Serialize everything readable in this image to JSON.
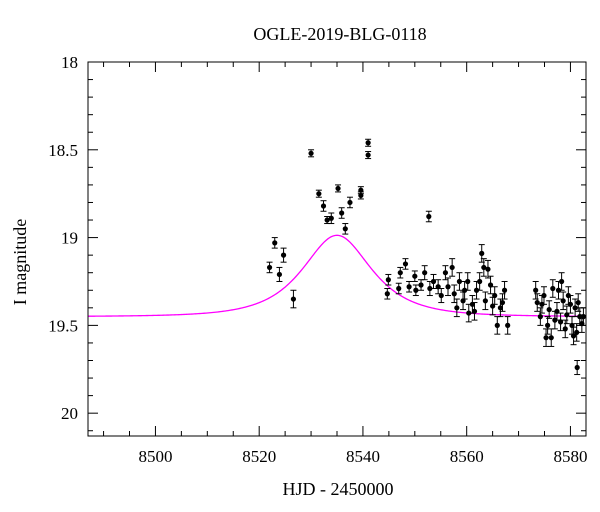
{
  "chart_data": {
    "type": "scatter",
    "title": "OGLE-2019-BLG-0118",
    "xlabel": "HJD - 2450000",
    "ylabel": "I magnitude",
    "xlim": [
      8487,
      8583
    ],
    "ylim": [
      20.13,
      18.0
    ],
    "y_inverted": true,
    "grid": false,
    "x_ticks": [
      8500,
      8520,
      8540,
      8560,
      8580
    ],
    "x_tick_labels": [
      "8500",
      "8520",
      "8540",
      "8560",
      "8580"
    ],
    "y_ticks": [
      18,
      18.5,
      19,
      19.5,
      20
    ],
    "y_tick_labels": [
      "18",
      "18.5",
      "19",
      "19.5",
      "20"
    ],
    "colors": {
      "model": "#ff00ff",
      "points": "#000000"
    },
    "series": [
      {
        "type": "scatter_errorbar",
        "points": [
          [
            8522,
            19.17,
            0.03
          ],
          [
            8523,
            19.03,
            0.03
          ],
          [
            8523.9,
            19.21,
            0.04
          ],
          [
            8524.7,
            19.1,
            0.04
          ],
          [
            8526.6,
            19.35,
            0.05
          ],
          [
            8530,
            18.52,
            0.02
          ],
          [
            8531.5,
            18.75,
            0.02
          ],
          [
            8532.4,
            18.82,
            0.03
          ],
          [
            8533.1,
            18.9,
            0.02
          ],
          [
            8533.9,
            18.89,
            0.03
          ],
          [
            8535.2,
            18.72,
            0.02
          ],
          [
            8535.9,
            18.86,
            0.03
          ],
          [
            8536.6,
            18.95,
            0.03
          ],
          [
            8537.5,
            18.8,
            0.03
          ],
          [
            8539.6,
            18.73,
            0.02
          ],
          [
            8539.6,
            18.76,
            0.02
          ],
          [
            8541.0,
            18.53,
            0.02
          ],
          [
            8541.0,
            18.46,
            0.02
          ],
          [
            8544.7,
            19.32,
            0.03
          ],
          [
            8544.9,
            19.24,
            0.03
          ],
          [
            8546.9,
            19.29,
            0.03
          ],
          [
            8547.2,
            19.2,
            0.03
          ],
          [
            8548.2,
            19.15,
            0.03
          ],
          [
            8548.9,
            19.28,
            0.03
          ],
          [
            8550.0,
            19.22,
            0.03
          ],
          [
            8550.2,
            19.3,
            0.03
          ],
          [
            8551.2,
            19.27,
            0.03
          ],
          [
            8551.9,
            19.2,
            0.04
          ],
          [
            8552.7,
            18.88,
            0.03
          ],
          [
            8552.9,
            19.29,
            0.04
          ],
          [
            8553.6,
            19.25,
            0.04
          ],
          [
            8554.5,
            19.28,
            0.04
          ],
          [
            8555.1,
            19.33,
            0.04
          ],
          [
            8555.9,
            19.2,
            0.04
          ],
          [
            8556.4,
            19.28,
            0.05
          ],
          [
            8557.2,
            19.17,
            0.05
          ],
          [
            8557.6,
            19.32,
            0.05
          ],
          [
            8558.1,
            19.4,
            0.05
          ],
          [
            8558.6,
            19.25,
            0.05
          ],
          [
            8559.3,
            19.36,
            0.05
          ],
          [
            8559.6,
            19.3,
            0.05
          ],
          [
            8560.2,
            19.25,
            0.05
          ],
          [
            8560.4,
            19.43,
            0.05
          ],
          [
            8561.1,
            19.38,
            0.05
          ],
          [
            8561.5,
            19.42,
            0.05
          ],
          [
            8561.9,
            19.3,
            0.05
          ],
          [
            8562.5,
            19.25,
            0.05
          ],
          [
            8562.9,
            19.09,
            0.05
          ],
          [
            8563.3,
            19.17,
            0.05
          ],
          [
            8563.6,
            19.36,
            0.05
          ],
          [
            8564.1,
            19.18,
            0.05
          ],
          [
            8564.6,
            19.27,
            0.05
          ],
          [
            8565.0,
            19.39,
            0.05
          ],
          [
            8565.4,
            19.33,
            0.05
          ],
          [
            8565.9,
            19.5,
            0.05
          ],
          [
            8566.5,
            19.4,
            0.05
          ],
          [
            8566.9,
            19.37,
            0.05
          ],
          [
            8567.3,
            19.3,
            0.05
          ],
          [
            8567.9,
            19.5,
            0.05
          ],
          [
            8573.3,
            19.3,
            0.05
          ],
          [
            8573.6,
            19.37,
            0.05
          ],
          [
            8574.2,
            19.45,
            0.05
          ],
          [
            8574.5,
            19.38,
            0.05
          ],
          [
            8574.9,
            19.33,
            0.05
          ],
          [
            8575.3,
            19.57,
            0.05
          ],
          [
            8575.6,
            19.5,
            0.05
          ],
          [
            8575.9,
            19.41,
            0.05
          ],
          [
            8576.3,
            19.57,
            0.05
          ],
          [
            8576.6,
            19.29,
            0.05
          ],
          [
            8577.0,
            19.47,
            0.05
          ],
          [
            8577.4,
            19.42,
            0.05
          ],
          [
            8577.7,
            19.3,
            0.05
          ],
          [
            8578.1,
            19.48,
            0.05
          ],
          [
            8578.3,
            19.25,
            0.05
          ],
          [
            8578.6,
            19.36,
            0.05
          ],
          [
            8579.0,
            19.52,
            0.05
          ],
          [
            8579.3,
            19.44,
            0.05
          ],
          [
            8579.6,
            19.33,
            0.05
          ],
          [
            8580.0,
            19.38,
            0.05
          ],
          [
            8580.3,
            19.5,
            0.05
          ],
          [
            8580.6,
            19.56,
            0.05
          ],
          [
            8580.9,
            19.4,
            0.05
          ],
          [
            8581.2,
            19.54,
            0.05
          ],
          [
            8581.5,
            19.37,
            0.05
          ],
          [
            8581.8,
            19.45,
            0.05
          ],
          [
            8582.2,
            19.49,
            0.05
          ],
          [
            8582.5,
            19.45,
            0.05
          ],
          [
            8581.3,
            19.74,
            0.04
          ]
        ]
      },
      {
        "type": "model_line",
        "baseline_mag": 19.45,
        "t0": 8535,
        "u0": 0.8,
        "tE": 9
      }
    ]
  }
}
